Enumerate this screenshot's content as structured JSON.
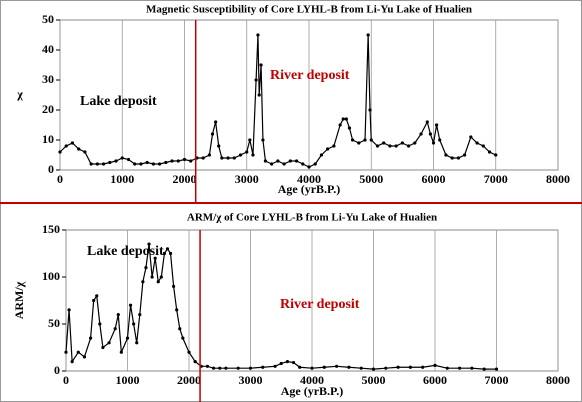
{
  "chart_data": [
    {
      "type": "line",
      "title": "Magnetic Susceptibility of Core LYHL-B from Li-Yu Lake of Hualien",
      "xlabel": "Age (yrB.P.)",
      "ylabel": "χ",
      "annotations": [
        {
          "text": "River deposit",
          "color": "#c00000"
        },
        {
          "text": "Lake deposit",
          "color": "#000000"
        }
      ],
      "vline": 2180,
      "vline_color": "#c00000",
      "x": [
        0,
        100,
        200,
        300,
        400,
        500,
        600,
        700,
        800,
        900,
        1000,
        1100,
        1200,
        1300,
        1400,
        1500,
        1600,
        1700,
        1800,
        1900,
        2000,
        2100,
        2200,
        2300,
        2400,
        2450,
        2500,
        2550,
        2600,
        2700,
        2800,
        2900,
        3000,
        3050,
        3100,
        3150,
        3180,
        3200,
        3230,
        3260,
        3300,
        3400,
        3500,
        3600,
        3700,
        3800,
        3900,
        4000,
        4100,
        4200,
        4300,
        4400,
        4500,
        4550,
        4600,
        4650,
        4700,
        4800,
        4900,
        4950,
        4980,
        5000,
        5100,
        5200,
        5300,
        5400,
        5500,
        5600,
        5700,
        5800,
        5900,
        5950,
        6000,
        6050,
        6100,
        6200,
        6300,
        6400,
        6500,
        6600,
        6700,
        6800,
        6900,
        7000
      ],
      "series": [
        {
          "color": "#000000",
          "values": [
            6,
            8,
            9,
            7,
            6,
            2,
            2,
            2,
            2.5,
            3,
            4,
            3.5,
            2,
            2,
            2.5,
            2,
            2,
            2.5,
            3,
            3,
            3.5,
            3,
            4,
            4,
            5,
            12,
            16,
            8,
            4,
            4,
            4,
            5,
            6,
            10,
            5,
            30,
            45,
            25,
            35,
            10,
            3,
            2,
            3,
            2,
            3,
            3,
            2,
            1,
            2,
            5,
            7,
            8,
            15,
            17,
            17,
            14,
            10,
            9,
            10,
            45,
            20,
            10,
            8,
            9,
            8,
            8,
            9,
            8,
            9,
            12,
            16,
            12,
            9,
            15,
            10,
            5,
            4,
            4,
            5,
            11,
            9,
            8,
            6,
            5
          ]
        }
      ],
      "xlim": [
        0,
        8000
      ],
      "ylim": [
        0,
        50
      ],
      "xticks": [
        0,
        1000,
        2000,
        3000,
        4000,
        5000,
        6000,
        7000,
        8000
      ],
      "yticks": [
        0,
        10,
        20,
        30,
        40,
        50
      ],
      "grid": true
    },
    {
      "type": "line",
      "title": "ARM/χ of Core LYHL-B from Li-Yu  Lake of Hualien",
      "xlabel": "Age (yrB.P.)",
      "ylabel": "ARM/χ",
      "annotations": [
        {
          "text": "Lake deposit",
          "color": "#000000"
        },
        {
          "text": "River deposit",
          "color": "#c00000"
        }
      ],
      "vline": 2180,
      "vline_color": "#c00000",
      "x": [
        0,
        50,
        100,
        200,
        300,
        400,
        450,
        500,
        550,
        600,
        700,
        800,
        850,
        900,
        1000,
        1050,
        1100,
        1150,
        1200,
        1250,
        1300,
        1350,
        1400,
        1450,
        1500,
        1550,
        1600,
        1650,
        1700,
        1750,
        1800,
        1850,
        1900,
        2000,
        2100,
        2200,
        2300,
        2400,
        2500,
        2600,
        2800,
        3000,
        3200,
        3400,
        3500,
        3600,
        3700,
        3800,
        4000,
        4200,
        4400,
        4600,
        4800,
        5000,
        5200,
        5400,
        5600,
        5800,
        6000,
        6200,
        6400,
        6600,
        6800,
        7000
      ],
      "series": [
        {
          "color": "#000000",
          "values": [
            20,
            65,
            10,
            20,
            15,
            35,
            75,
            80,
            50,
            25,
            30,
            45,
            60,
            20,
            35,
            70,
            50,
            30,
            60,
            95,
            110,
            135,
            100,
            120,
            95,
            100,
            125,
            130,
            125,
            90,
            65,
            45,
            35,
            20,
            10,
            5,
            5,
            3,
            3,
            3,
            3,
            3,
            4,
            5,
            8,
            10,
            9,
            4,
            3,
            4,
            5,
            4,
            3,
            2,
            3,
            4,
            4,
            4,
            6,
            3,
            3,
            3,
            2,
            2
          ]
        }
      ],
      "xlim": [
        0,
        8000
      ],
      "ylim": [
        0,
        150
      ],
      "xticks": [
        0,
        1000,
        2000,
        3000,
        4000,
        5000,
        6000,
        7000,
        8000
      ],
      "yticks": [
        0,
        50,
        100,
        150
      ],
      "grid": true
    }
  ]
}
